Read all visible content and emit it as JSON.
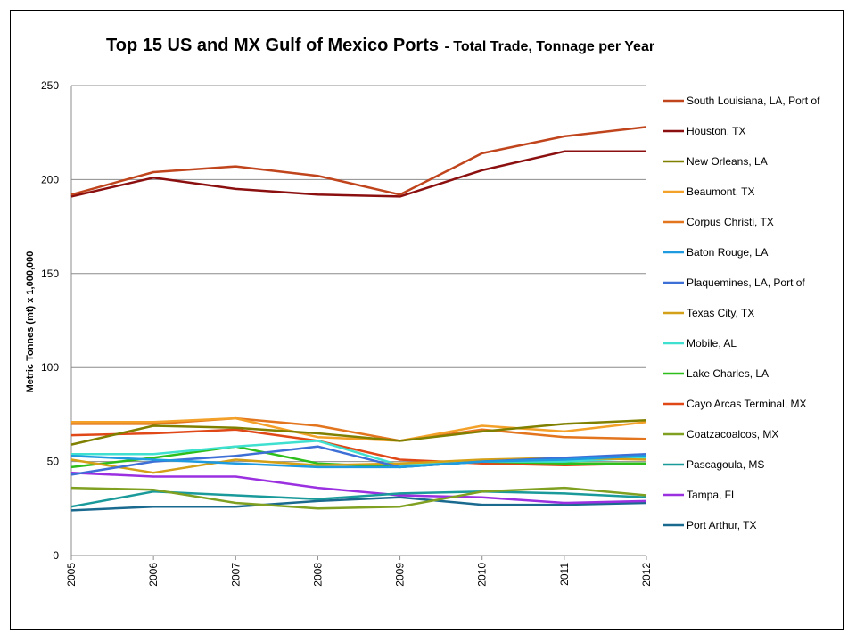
{
  "chart_data": {
    "type": "line",
    "title": "Top 15 US and MX Gulf of Mexico Ports",
    "subtitle": "- Total Trade, Tonnage per Year",
    "xlabel": "",
    "ylabel": "Metric Tonnes (mt) x 1,000,000",
    "x": [
      "2005",
      "2006",
      "2007",
      "2008",
      "2009",
      "2010",
      "2011",
      "2012"
    ],
    "ylim": [
      0,
      250
    ],
    "yticks": [
      "0",
      "50",
      "100",
      "150",
      "200",
      "250"
    ],
    "grid": "horizontal",
    "legend": "right",
    "series": [
      {
        "name": "South Louisiana, LA, Port of",
        "color": "#C0441C",
        "values": [
          192,
          204,
          207,
          202,
          192,
          214,
          223,
          228
        ]
      },
      {
        "name": "Houston, TX",
        "color": "#8B0F0F",
        "values": [
          191,
          201,
          195,
          192,
          191,
          205,
          215,
          215
        ]
      },
      {
        "name": "New Orleans, LA",
        "color": "#808000",
        "values": [
          59,
          69,
          68,
          65,
          61,
          66,
          70,
          72
        ]
      },
      {
        "name": "Beaumont, TX",
        "color": "#F4A12A",
        "values": [
          71,
          71,
          73,
          63,
          61,
          69,
          66,
          71
        ]
      },
      {
        "name": "Corpus Christi, TX",
        "color": "#E2751E",
        "values": [
          70,
          70,
          73,
          69,
          61,
          67,
          63,
          62
        ]
      },
      {
        "name": "Baton Rouge, LA",
        "color": "#1E9AE0",
        "values": [
          53,
          51,
          49,
          47,
          47,
          50,
          51,
          53
        ]
      },
      {
        "name": "Plaquemines, LA, Port of",
        "color": "#3D6FD6",
        "values": [
          43,
          50,
          53,
          58,
          47,
          50,
          52,
          54
        ]
      },
      {
        "name": "Texas City, TX",
        "color": "#D4A017",
        "values": [
          51,
          44,
          51,
          48,
          49,
          51,
          52,
          51
        ]
      },
      {
        "name": "Mobile, AL",
        "color": "#3FE0D0",
        "values": [
          54,
          54,
          58,
          61,
          48,
          50,
          50,
          52
        ]
      },
      {
        "name": "Lake Charles, LA",
        "color": "#2DBE1C",
        "values": [
          47,
          52,
          58,
          49,
          47,
          50,
          49,
          49
        ]
      },
      {
        "name": "Cayo Arcas Terminal, MX",
        "color": "#E04818",
        "values": [
          64,
          65,
          67,
          61,
          51,
          49,
          48,
          49
        ]
      },
      {
        "name": "Coatzacoalcos, MX",
        "color": "#7FA020",
        "values": [
          36,
          35,
          28,
          25,
          26,
          34,
          36,
          32
        ]
      },
      {
        "name": "Pascagoula, MS",
        "color": "#1A9A9A",
        "values": [
          26,
          34,
          32,
          30,
          33,
          34,
          33,
          31
        ]
      },
      {
        "name": "Tampa, FL",
        "color": "#9B30E0",
        "values": [
          44,
          42,
          42,
          36,
          32,
          31,
          28,
          29
        ]
      },
      {
        "name": "Port Arthur, TX",
        "color": "#1A6A90",
        "values": [
          24,
          26,
          26,
          29,
          31,
          27,
          27,
          28
        ]
      }
    ]
  }
}
